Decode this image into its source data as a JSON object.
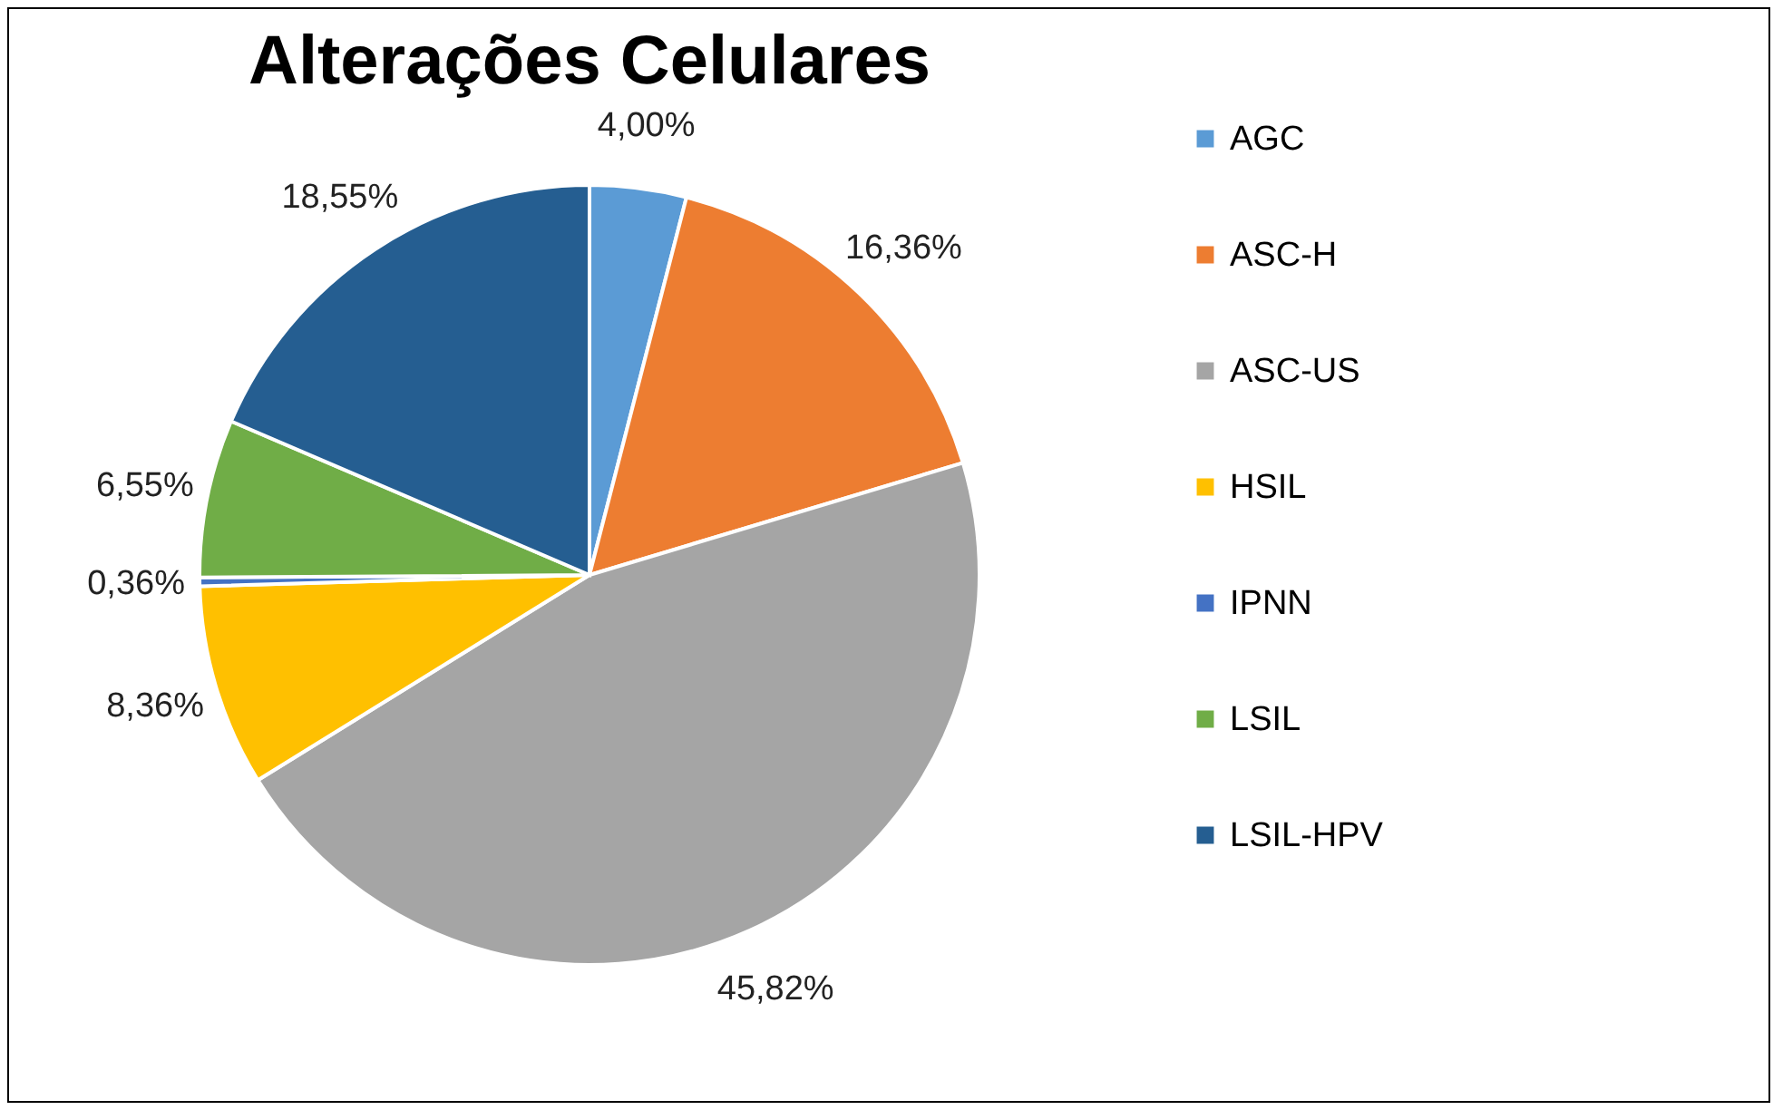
{
  "chart_data": {
    "type": "pie",
    "title": "Alterações Celulares",
    "categories": [
      "AGC",
      "ASC-H",
      "ASC-US",
      "HSIL",
      "IPNN",
      "LSIL",
      "LSIL-HPV"
    ],
    "values": [
      4.0,
      16.36,
      45.82,
      8.36,
      0.36,
      6.55,
      18.55
    ],
    "colors": [
      "#5b9bd5",
      "#ed7d31",
      "#a5a5a5",
      "#ffc000",
      "#4472c4",
      "#70ad47",
      "#255e91"
    ],
    "value_labels": [
      "4,00%",
      "16,36%",
      "45,82%",
      "8,36%",
      "0,36%",
      "6,55%",
      "18,55%"
    ],
    "legend": "right"
  }
}
